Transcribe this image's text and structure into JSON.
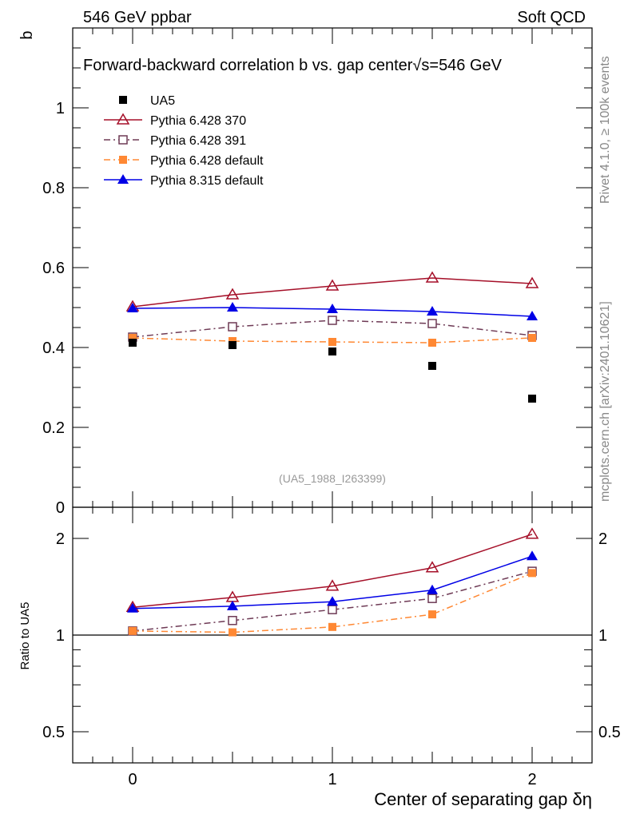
{
  "header": {
    "left": "546 GeV ppbar",
    "right": "Soft QCD"
  },
  "side_text": {
    "top": "Rivet 4.1.0, ≥ 100k events",
    "bottom": "mcplots.cern.ch [arXiv:2401.10621]"
  },
  "chart_data": [
    {
      "type": "scatter",
      "title": "Forward-backward correlation b  vs. gap center",
      "title_extra": "√s=546 GeV",
      "ylabel": "b",
      "annotation": "(UA5_1988_I263399)",
      "xlim": [
        -0.3,
        2.3
      ],
      "ylim": [
        0,
        1.2
      ],
      "yticks": [
        0,
        0.2,
        0.4,
        0.6,
        0.8,
        1
      ],
      "ytick_labels": [
        "0",
        "0.2",
        "0.4",
        "0.6",
        "0.8",
        "1"
      ],
      "legend_position": "top-left",
      "x": [
        0,
        0.5,
        1,
        1.5,
        2
      ],
      "series": [
        {
          "name": "UA5",
          "color": "#000000",
          "marker": "filled-square",
          "line": "none",
          "values": [
            0.412,
            0.406,
            0.39,
            0.354,
            0.272
          ]
        },
        {
          "name": "Pythia 6.428 370",
          "color": "#a50f28",
          "marker": "open-triangle",
          "line": "solid",
          "values": [
            0.502,
            0.532,
            0.554,
            0.574,
            0.56
          ]
        },
        {
          "name": "Pythia 6.428 391",
          "color": "#6e3a55",
          "marker": "open-square",
          "line": "dashdot",
          "values": [
            0.426,
            0.452,
            0.468,
            0.46,
            0.43
          ]
        },
        {
          "name": "Pythia 6.428 default",
          "color": "#ff8833",
          "marker": "filled-square",
          "line": "dashdot",
          "values": [
            0.424,
            0.416,
            0.414,
            0.412,
            0.424
          ]
        },
        {
          "name": "Pythia 8.315 default",
          "color": "#0000e6",
          "marker": "filled-triangle",
          "line": "solid",
          "values": [
            0.498,
            0.5,
            0.496,
            0.49,
            0.478
          ]
        }
      ]
    },
    {
      "type": "line",
      "ylabel": "Ratio to UA5",
      "xlabel": "Center of separating gap δη",
      "yscale": "log",
      "ylim": [
        0.4,
        2.5
      ],
      "yticks": [
        0.5,
        1,
        2
      ],
      "ytick_labels": [
        "0.5",
        "1",
        "2"
      ],
      "xticks": [
        0,
        1,
        2
      ],
      "xtick_labels": [
        "0",
        "1",
        "2"
      ],
      "x": [
        0,
        0.5,
        1,
        1.5,
        2
      ],
      "series": [
        {
          "name": "Pythia 6.428 370",
          "values": [
            1.22,
            1.31,
            1.42,
            1.62,
            2.06
          ]
        },
        {
          "name": "Pythia 6.428 391",
          "values": [
            1.03,
            1.11,
            1.2,
            1.3,
            1.58
          ]
        },
        {
          "name": "Pythia 6.428 default",
          "values": [
            1.03,
            1.02,
            1.06,
            1.16,
            1.56
          ]
        },
        {
          "name": "Pythia 8.315 default",
          "values": [
            1.21,
            1.23,
            1.27,
            1.38,
            1.76
          ]
        }
      ]
    }
  ]
}
